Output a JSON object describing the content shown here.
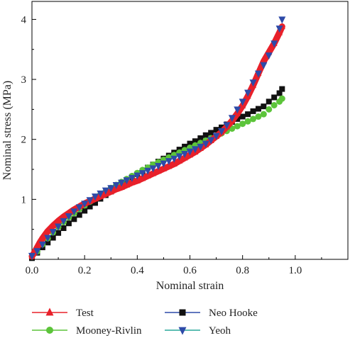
{
  "chart_data": {
    "type": "line",
    "xlabel": "Nominal strain",
    "ylabel": "Nominal stress (MPa)",
    "xlim": [
      0.0,
      1.2
    ],
    "ylim": [
      0.0,
      4.3
    ],
    "x_ticks": [
      "0.0",
      "0.2",
      "0.4",
      "0.6",
      "0.8",
      "1.0"
    ],
    "y_ticks": [
      "1",
      "2",
      "3",
      "4"
    ],
    "grid": false,
    "legend_position": "bottom",
    "series": [
      {
        "name": "Test",
        "color": "#e8202a",
        "marker": "triangle-up",
        "x": [
          0.0,
          0.01,
          0.02,
          0.03,
          0.04,
          0.05,
          0.06,
          0.08,
          0.1,
          0.12,
          0.14,
          0.16,
          0.18,
          0.2,
          0.22,
          0.24,
          0.26,
          0.28,
          0.3,
          0.32,
          0.34,
          0.36,
          0.38,
          0.4,
          0.42,
          0.44,
          0.46,
          0.48,
          0.5,
          0.52,
          0.54,
          0.56,
          0.58,
          0.6,
          0.62,
          0.64,
          0.66,
          0.68,
          0.7,
          0.72,
          0.74,
          0.76,
          0.78,
          0.8,
          0.82,
          0.84,
          0.86,
          0.88,
          0.9,
          0.92,
          0.94,
          0.95
        ],
        "y": [
          0.05,
          0.12,
          0.2,
          0.28,
          0.35,
          0.41,
          0.47,
          0.56,
          0.64,
          0.71,
          0.77,
          0.83,
          0.88,
          0.93,
          0.97,
          1.01,
          1.05,
          1.09,
          1.13,
          1.17,
          1.2,
          1.24,
          1.28,
          1.31,
          1.35,
          1.39,
          1.43,
          1.47,
          1.51,
          1.55,
          1.59,
          1.64,
          1.69,
          1.74,
          1.79,
          1.85,
          1.91,
          1.98,
          2.05,
          2.12,
          2.21,
          2.31,
          2.43,
          2.56,
          2.72,
          2.9,
          3.1,
          3.3,
          3.45,
          3.6,
          3.78,
          3.88
        ]
      },
      {
        "name": "Mooney-Rivlin",
        "color": "#5cc43a",
        "marker": "circle",
        "x": [
          0.0,
          0.02,
          0.04,
          0.06,
          0.08,
          0.1,
          0.12,
          0.14,
          0.16,
          0.18,
          0.2,
          0.22,
          0.24,
          0.26,
          0.28,
          0.3,
          0.32,
          0.34,
          0.36,
          0.38,
          0.4,
          0.42,
          0.44,
          0.46,
          0.48,
          0.5,
          0.52,
          0.54,
          0.56,
          0.58,
          0.6,
          0.62,
          0.64,
          0.66,
          0.68,
          0.7,
          0.72,
          0.74,
          0.76,
          0.78,
          0.8,
          0.82,
          0.84,
          0.86,
          0.88,
          0.9,
          0.92,
          0.94,
          0.95
        ],
        "y": [
          0.05,
          0.13,
          0.25,
          0.35,
          0.45,
          0.54,
          0.62,
          0.7,
          0.77,
          0.84,
          0.9,
          0.96,
          1.02,
          1.08,
          1.13,
          1.19,
          1.24,
          1.29,
          1.34,
          1.39,
          1.44,
          1.49,
          1.53,
          1.58,
          1.62,
          1.66,
          1.7,
          1.74,
          1.78,
          1.82,
          1.86,
          1.9,
          1.94,
          1.98,
          2.02,
          2.06,
          2.1,
          2.14,
          2.18,
          2.22,
          2.26,
          2.3,
          2.34,
          2.38,
          2.42,
          2.5,
          2.57,
          2.63,
          2.68
        ]
      },
      {
        "name": "Neo Hooke",
        "color": "#111111",
        "marker": "square",
        "x": [
          0.0,
          0.02,
          0.04,
          0.06,
          0.08,
          0.1,
          0.12,
          0.14,
          0.16,
          0.18,
          0.2,
          0.22,
          0.24,
          0.26,
          0.28,
          0.3,
          0.32,
          0.34,
          0.36,
          0.38,
          0.4,
          0.42,
          0.44,
          0.46,
          0.48,
          0.5,
          0.52,
          0.54,
          0.56,
          0.58,
          0.6,
          0.62,
          0.64,
          0.66,
          0.68,
          0.7,
          0.72,
          0.74,
          0.76,
          0.78,
          0.8,
          0.82,
          0.84,
          0.86,
          0.88,
          0.9,
          0.92,
          0.94,
          0.95
        ],
        "y": [
          0.02,
          0.11,
          0.2,
          0.28,
          0.36,
          0.44,
          0.52,
          0.6,
          0.67,
          0.74,
          0.81,
          0.88,
          0.94,
          1.01,
          1.07,
          1.13,
          1.19,
          1.25,
          1.31,
          1.36,
          1.42,
          1.47,
          1.53,
          1.58,
          1.63,
          1.68,
          1.73,
          1.78,
          1.83,
          1.88,
          1.93,
          1.97,
          2.02,
          2.07,
          2.11,
          2.16,
          2.2,
          2.25,
          2.29,
          2.34,
          2.38,
          2.42,
          2.47,
          2.51,
          2.55,
          2.63,
          2.7,
          2.77,
          2.84
        ]
      },
      {
        "name": "Yeoh",
        "color": "#2e4aa8",
        "marker": "triangle-down",
        "x": [
          0.0,
          0.02,
          0.04,
          0.06,
          0.08,
          0.1,
          0.12,
          0.14,
          0.16,
          0.18,
          0.2,
          0.22,
          0.24,
          0.26,
          0.28,
          0.3,
          0.32,
          0.34,
          0.36,
          0.38,
          0.4,
          0.42,
          0.44,
          0.46,
          0.48,
          0.5,
          0.52,
          0.54,
          0.56,
          0.58,
          0.6,
          0.62,
          0.64,
          0.66,
          0.68,
          0.7,
          0.72,
          0.74,
          0.76,
          0.78,
          0.8,
          0.82,
          0.84,
          0.86,
          0.88,
          0.9,
          0.92,
          0.94,
          0.95
        ],
        "y": [
          0.06,
          0.14,
          0.25,
          0.36,
          0.46,
          0.55,
          0.64,
          0.72,
          0.8,
          0.87,
          0.93,
          0.99,
          1.05,
          1.1,
          1.15,
          1.19,
          1.24,
          1.28,
          1.32,
          1.36,
          1.4,
          1.44,
          1.48,
          1.52,
          1.56,
          1.6,
          1.64,
          1.68,
          1.72,
          1.76,
          1.8,
          1.84,
          1.88,
          1.93,
          1.99,
          2.06,
          2.14,
          2.24,
          2.36,
          2.5,
          2.63,
          2.78,
          2.95,
          3.1,
          3.24,
          3.4,
          3.6,
          3.85,
          4.0
        ]
      }
    ]
  }
}
